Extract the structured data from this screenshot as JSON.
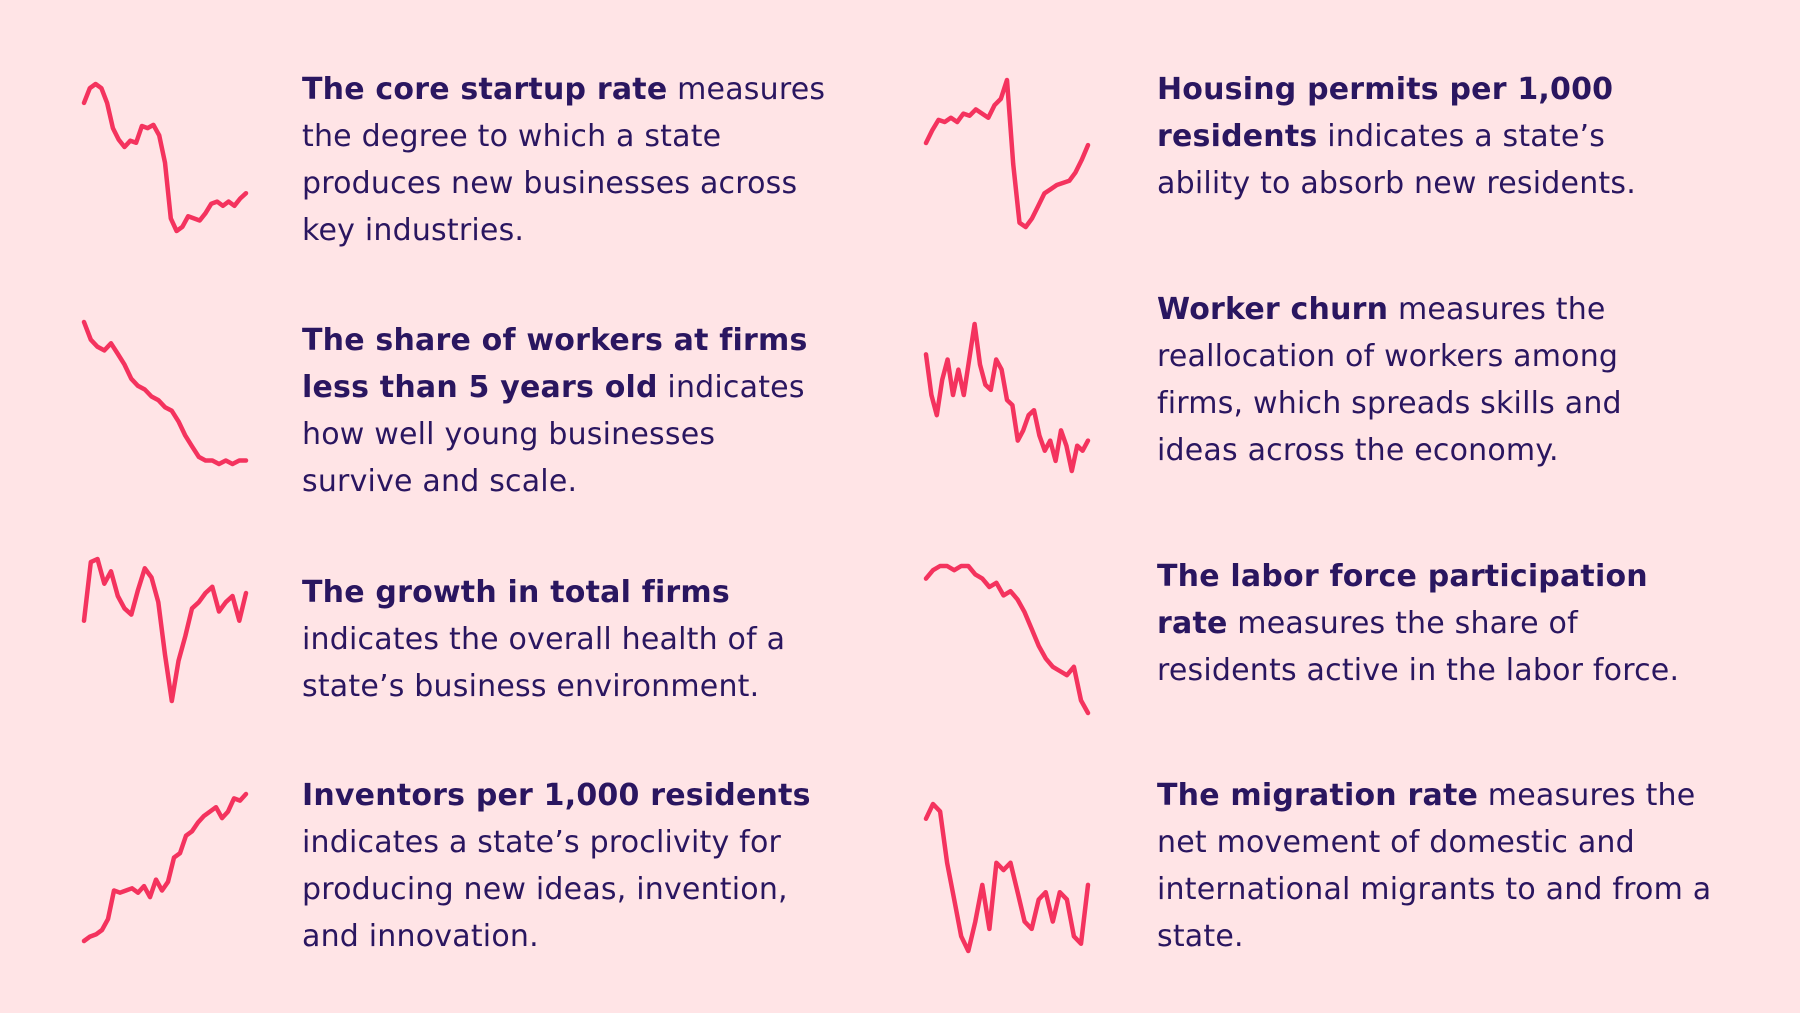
{
  "colors": {
    "background": "#ffe4e6",
    "line": "#f4335e",
    "text": "#2a1660"
  },
  "chart_data": [
    {
      "type": "line",
      "title": "",
      "y": [
        0.62,
        0.76,
        0.8,
        0.76,
        0.62,
        0.38,
        0.27,
        0.2,
        0.26,
        0.24,
        0.4,
        0.38,
        0.41,
        0.31,
        0.05,
        -0.48,
        -0.6,
        -0.56,
        -0.46,
        -0.48,
        -0.5,
        -0.43,
        -0.34,
        -0.32,
        -0.36,
        -0.32,
        -0.36,
        -0.29,
        -0.24
      ]
    },
    {
      "type": "line",
      "title": "",
      "y": [
        0.96,
        0.91,
        0.89,
        0.88,
        0.9,
        0.87,
        0.84,
        0.8,
        0.78,
        0.77,
        0.75,
        0.74,
        0.72,
        0.71,
        0.68,
        0.64,
        0.61,
        0.58,
        0.57,
        0.57,
        0.56,
        0.57,
        0.56,
        0.57,
        0.57
      ]
    },
    {
      "type": "line",
      "title": "",
      "y": [
        0.3,
        2.2,
        2.3,
        1.5,
        1.9,
        1.1,
        0.7,
        0.5,
        1.3,
        2.0,
        1.7,
        0.9,
        -0.8,
        -2.3,
        -1.0,
        -0.2,
        0.7,
        0.9,
        1.2,
        1.4,
        0.6,
        0.9,
        1.1,
        0.3,
        1.2
      ]
    },
    {
      "type": "line",
      "title": "",
      "y": [
        0.1,
        0.3,
        0.4,
        0.6,
        1.1,
        2.4,
        2.3,
        2.4,
        2.5,
        2.3,
        2.6,
        2.1,
        2.9,
        2.4,
        2.8,
        3.9,
        4.1,
        4.9,
        5.1,
        5.5,
        5.8,
        6.0,
        6.2,
        5.7,
        6.0,
        6.6,
        6.5,
        6.8
      ]
    },
    {
      "type": "line",
      "title": "",
      "y": [
        4.0,
        4.6,
        5.1,
        5.0,
        5.2,
        5.0,
        5.4,
        5.3,
        5.6,
        5.4,
        5.2,
        5.8,
        6.1,
        7.0,
        3.0,
        0.2,
        0.0,
        0.4,
        1.0,
        1.6,
        1.8,
        2.0,
        2.1,
        2.2,
        2.6,
        3.2,
        3.9
      ]
    },
    {
      "type": "line",
      "title": "",
      "y": [
        0.61,
        0.53,
        0.49,
        0.56,
        0.6,
        0.53,
        0.58,
        0.53,
        0.6,
        0.67,
        0.59,
        0.55,
        0.54,
        0.6,
        0.58,
        0.52,
        0.51,
        0.44,
        0.46,
        0.49,
        0.5,
        0.45,
        0.42,
        0.44,
        0.4,
        0.46,
        0.43,
        0.38,
        0.43,
        0.42,
        0.44
      ]
    },
    {
      "type": "line",
      "title": "",
      "y": [
        66.2,
        66.4,
        66.5,
        66.5,
        66.4,
        66.5,
        66.5,
        66.3,
        66.2,
        66.0,
        66.1,
        65.8,
        65.9,
        65.7,
        65.4,
        65.0,
        64.6,
        64.3,
        64.1,
        64.0,
        63.9,
        64.1,
        63.3,
        63.0
      ]
    },
    {
      "type": "line",
      "title": "",
      "y": [
        0.8,
        1.0,
        0.9,
        0.2,
        -0.3,
        -0.8,
        -1.0,
        -0.6,
        -0.1,
        -0.7,
        0.2,
        0.1,
        0.2,
        -0.2,
        -0.6,
        -0.7,
        -0.3,
        -0.2,
        -0.6,
        -0.2,
        -0.3,
        -0.8,
        -0.9,
        -0.1
      ]
    }
  ],
  "items": [
    {
      "bold": "The core startup rate",
      "rest": " measures the degree to which a state produces new businesses across key industries."
    },
    {
      "bold": "The share of workers at firms less than 5 years old",
      "rest": " indicates how well young businesses survive and scale."
    },
    {
      "bold": "The growth in total firms",
      "rest": " indicates the overall health of a state’s business environment."
    },
    {
      "bold": "Inventors per 1,000 residents",
      "rest": " indicates a state’s proclivity for producing new ideas, invention, and innovation."
    },
    {
      "bold": "Housing permits per 1,000 residents",
      "rest": " indicates a state’s ability to absorb new residents."
    },
    {
      "bold": "Worker churn",
      "rest": " measures the reallocation of workers among firms, which spreads skills and ideas across the economy."
    },
    {
      "bold": "The labor force participation rate",
      "rest": " measures the share of residents active in the labor force."
    },
    {
      "bold": "The migration rate",
      "rest": " measures the net movement of domestic and international migrants to and from a state."
    }
  ]
}
